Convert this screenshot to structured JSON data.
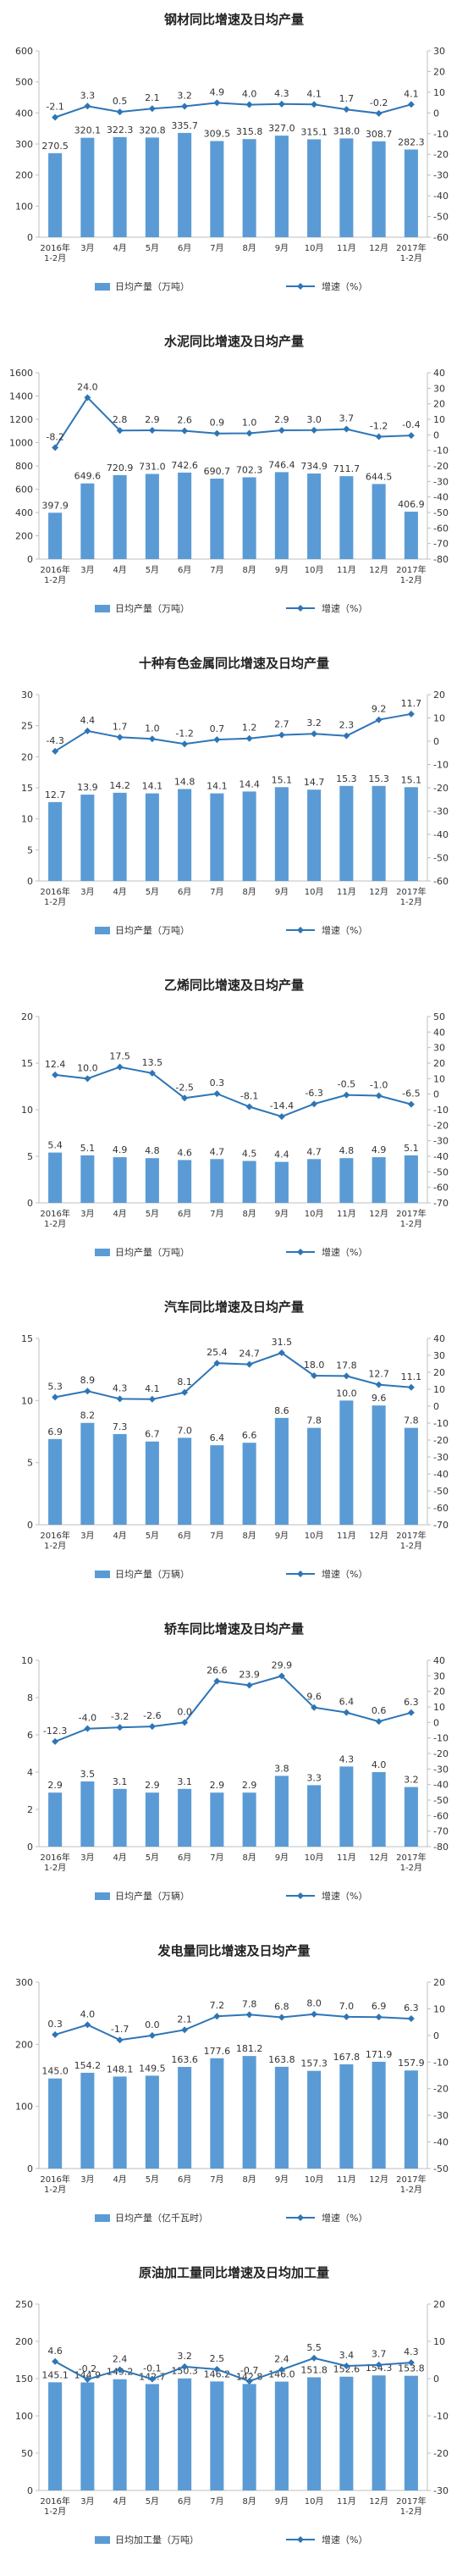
{
  "months": [
    "2016年\n1-2月",
    "3月",
    "4月",
    "5月",
    "6月",
    "7月",
    "8月",
    "9月",
    "10月",
    "11月",
    "12月",
    "2017年\n1-2月"
  ],
  "colors": {
    "bar": "#5b9bd5",
    "line": "#2e75b6",
    "axis": "#bfbfbf",
    "text": "#333333"
  },
  "chart_data": [
    {
      "type": "bar+line",
      "title": "钢材同比增速及日均产量",
      "categories": [
        "2016年\n1-2月",
        "3月",
        "4月",
        "5月",
        "6月",
        "7月",
        "8月",
        "9月",
        "10月",
        "11月",
        "12月",
        "2017年\n1-2月"
      ],
      "series": [
        {
          "name": "日均产量（万吨）",
          "kind": "bar",
          "axis": "left",
          "values": [
            270.5,
            320.1,
            322.3,
            320.8,
            335.7,
            309.5,
            315.8,
            327.0,
            315.1,
            318.0,
            308.7,
            282.3
          ]
        },
        {
          "name": "增速（%）",
          "kind": "line",
          "axis": "right",
          "values": [
            -2.1,
            3.3,
            0.5,
            2.1,
            3.2,
            4.9,
            4.0,
            4.3,
            4.1,
            1.7,
            -0.2,
            4.1
          ]
        }
      ],
      "left_axis": {
        "min": 0,
        "max": 600,
        "step": 100
      },
      "right_axis": {
        "min": -60,
        "max": 30,
        "step": 10
      }
    },
    {
      "type": "bar+line",
      "title": "水泥同比增速及日均产量",
      "categories": [
        "2016年\n1-2月",
        "3月",
        "4月",
        "5月",
        "6月",
        "7月",
        "8月",
        "9月",
        "10月",
        "11月",
        "12月",
        "2017年\n1-2月"
      ],
      "series": [
        {
          "name": "日均产量（万吨）",
          "kind": "bar",
          "axis": "left",
          "values": [
            397.9,
            649.6,
            720.9,
            731.0,
            742.6,
            690.7,
            702.3,
            746.4,
            734.9,
            711.7,
            644.5,
            406.9
          ]
        },
        {
          "name": "增速（%）",
          "kind": "line",
          "axis": "right",
          "values": [
            -8.2,
            24.0,
            2.8,
            2.9,
            2.6,
            0.9,
            1.0,
            2.9,
            3.0,
            3.7,
            -1.2,
            -0.4
          ]
        }
      ],
      "left_axis": {
        "min": 0,
        "max": 1600,
        "step": 200
      },
      "right_axis": {
        "min": -80,
        "max": 40,
        "step": 10
      }
    },
    {
      "type": "bar+line",
      "title": "十种有色金属同比增速及日均产量",
      "categories": [
        "2016年\n1-2月",
        "3月",
        "4月",
        "5月",
        "6月",
        "7月",
        "8月",
        "9月",
        "10月",
        "11月",
        "12月",
        "2017年\n1-2月"
      ],
      "series": [
        {
          "name": "日均产量（万吨）",
          "kind": "bar",
          "axis": "left",
          "values": [
            12.7,
            13.9,
            14.2,
            14.1,
            14.8,
            14.1,
            14.4,
            15.1,
            14.7,
            15.3,
            15.3,
            15.1
          ]
        },
        {
          "name": "增速（%）",
          "kind": "line",
          "axis": "right",
          "values": [
            -4.3,
            4.4,
            1.7,
            1.0,
            -1.2,
            0.7,
            1.2,
            2.7,
            3.2,
            2.3,
            9.2,
            11.7
          ]
        }
      ],
      "left_axis": {
        "min": 0,
        "max": 30,
        "step": 5
      },
      "right_axis": {
        "min": -60,
        "max": 20,
        "step": 10
      }
    },
    {
      "type": "bar+line",
      "title": "乙烯同比增速及日均产量",
      "categories": [
        "2016年\n1-2月",
        "3月",
        "4月",
        "5月",
        "6月",
        "7月",
        "8月",
        "9月",
        "10月",
        "11月",
        "12月",
        "2017年\n1-2月"
      ],
      "series": [
        {
          "name": "日均产量（万吨）",
          "kind": "bar",
          "axis": "left",
          "values": [
            5.4,
            5.1,
            4.9,
            4.8,
            4.6,
            4.7,
            4.5,
            4.4,
            4.7,
            4.8,
            4.9,
            5.1
          ]
        },
        {
          "name": "增速（%）",
          "kind": "line",
          "axis": "right",
          "values": [
            12.4,
            10.0,
            17.5,
            13.5,
            -2.5,
            0.3,
            -8.1,
            -14.4,
            -6.3,
            -0.5,
            -1.0,
            -6.5
          ]
        }
      ],
      "left_axis": {
        "min": 0,
        "max": 20,
        "step": 5
      },
      "right_axis": {
        "min": -70,
        "max": 50,
        "step": 10
      }
    },
    {
      "type": "bar+line",
      "title": "汽车同比增速及日均产量",
      "categories": [
        "2016年\n1-2月",
        "3月",
        "4月",
        "5月",
        "6月",
        "7月",
        "8月",
        "9月",
        "10月",
        "11月",
        "12月",
        "2017年\n1-2月"
      ],
      "series": [
        {
          "name": "日均产量（万辆）",
          "kind": "bar",
          "axis": "left",
          "values": [
            6.9,
            8.2,
            7.3,
            6.7,
            7.0,
            6.4,
            6.6,
            8.6,
            7.8,
            10.0,
            9.6,
            7.8
          ]
        },
        {
          "name": "增速（%）",
          "kind": "line",
          "axis": "right",
          "values": [
            5.3,
            8.9,
            4.3,
            4.1,
            8.1,
            25.4,
            24.7,
            31.5,
            18.0,
            17.8,
            12.7,
            11.1
          ]
        }
      ],
      "left_axis": {
        "min": 0,
        "max": 15,
        "step": 5
      },
      "right_axis": {
        "min": -70,
        "max": 40,
        "step": 10
      }
    },
    {
      "type": "bar+line",
      "title": "轿车同比增速及日均产量",
      "categories": [
        "2016年\n1-2月",
        "3月",
        "4月",
        "5月",
        "6月",
        "7月",
        "8月",
        "9月",
        "10月",
        "11月",
        "12月",
        "2017年\n1-2月"
      ],
      "series": [
        {
          "name": "日均产量（万辆）",
          "kind": "bar",
          "axis": "left",
          "values": [
            2.9,
            3.5,
            3.1,
            2.9,
            3.1,
            2.9,
            2.9,
            3.8,
            3.3,
            4.3,
            4.0,
            3.2
          ]
        },
        {
          "name": "增速（%）",
          "kind": "line",
          "axis": "right",
          "values": [
            -12.3,
            -4.0,
            -3.2,
            -2.6,
            0.0,
            26.6,
            23.9,
            29.9,
            9.6,
            6.4,
            0.6,
            6.3
          ]
        }
      ],
      "left_axis": {
        "min": 0,
        "max": 10,
        "step": 2
      },
      "right_axis": {
        "min": -80,
        "max": 40,
        "step": 10
      }
    },
    {
      "type": "bar+line",
      "title": "发电量同比增速及日均产量",
      "categories": [
        "2016年\n1-2月",
        "3月",
        "4月",
        "5月",
        "6月",
        "7月",
        "8月",
        "9月",
        "10月",
        "11月",
        "12月",
        "2017年\n1-2月"
      ],
      "series": [
        {
          "name": "日均产量（亿千瓦时）",
          "kind": "bar",
          "axis": "left",
          "values": [
            145.0,
            154.2,
            148.1,
            149.5,
            163.6,
            177.6,
            181.2,
            163.8,
            157.3,
            167.8,
            171.9,
            157.9
          ]
        },
        {
          "name": "增速（%）",
          "kind": "line",
          "axis": "right",
          "values": [
            0.3,
            4.0,
            -1.7,
            0.0,
            2.1,
            7.2,
            7.8,
            6.8,
            8.0,
            7.0,
            6.9,
            6.3
          ]
        }
      ],
      "left_axis": {
        "min": 0,
        "max": 300,
        "step": 100
      },
      "right_axis": {
        "min": -50,
        "max": 20,
        "step": 10
      }
    },
    {
      "type": "bar+line",
      "title": "原油加工量同比增速及日均加工量",
      "categories": [
        "2016年\n1-2月",
        "3月",
        "4月",
        "5月",
        "6月",
        "7月",
        "8月",
        "9月",
        "10月",
        "11月",
        "12月",
        "2017年\n1-2月"
      ],
      "series": [
        {
          "name": "日均加工量（万吨）",
          "kind": "bar",
          "axis": "left",
          "values": [
            145.1,
            144.9,
            149.2,
            142.7,
            150.3,
            146.2,
            142.8,
            146.0,
            151.8,
            152.6,
            154.3,
            153.8
          ]
        },
        {
          "name": "增速（%）",
          "kind": "line",
          "axis": "right",
          "values": [
            4.6,
            -0.2,
            2.4,
            -0.1,
            3.2,
            2.5,
            -0.7,
            2.4,
            5.5,
            3.4,
            3.7,
            4.3
          ]
        }
      ],
      "left_axis": {
        "min": 0,
        "max": 250,
        "step": 50
      },
      "right_axis": {
        "min": -30,
        "max": 20,
        "step": 10
      }
    }
  ]
}
